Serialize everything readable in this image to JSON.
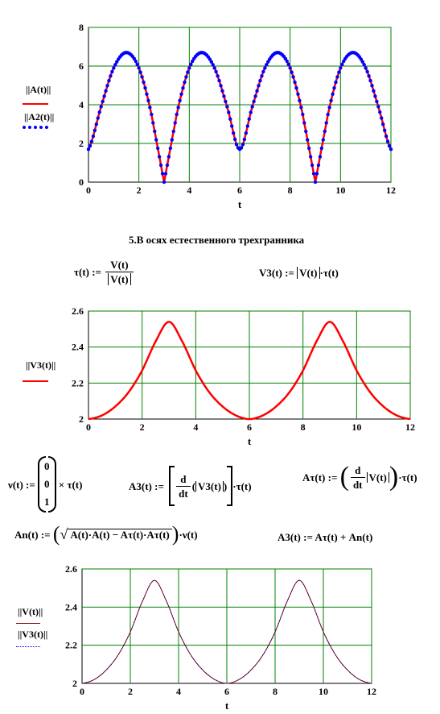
{
  "chart_data": [
    {
      "type": "line",
      "xlabel": "t",
      "xlim": [
        0,
        12
      ],
      "ylim": [
        0,
        8
      ],
      "xticks": [
        "0",
        "2",
        "4",
        "6",
        "8",
        "10",
        "12"
      ],
      "yticks": [
        "0",
        "2",
        "4",
        "6",
        "8"
      ],
      "grid": true,
      "frame_color": "#008000",
      "series": [
        {
          "name": "|A(t)|",
          "color": "#ff0000",
          "style": "solid",
          "x": [
            0,
            0.5,
            1,
            1.5,
            2,
            2.5,
            3,
            3.5,
            4,
            4.5,
            5,
            5.5,
            6,
            6.5,
            7,
            7.5,
            8,
            8.5,
            9,
            9.5,
            10,
            10.5,
            11,
            11.5,
            12
          ],
          "y": [
            1.7,
            3.9,
            5.9,
            6.7,
            5.9,
            3.5,
            0,
            3.5,
            5.9,
            6.7,
            5.9,
            3.9,
            1.7,
            3.9,
            5.9,
            6.7,
            5.9,
            3.5,
            0,
            3.5,
            5.9,
            6.7,
            5.9,
            3.9,
            1.7
          ]
        },
        {
          "name": "|A2(t)|",
          "color": "#0000ff",
          "style": "dots",
          "x": [
            0,
            0.5,
            1,
            1.5,
            2,
            2.5,
            3,
            3.5,
            4,
            4.5,
            5,
            5.5,
            6,
            6.5,
            7,
            7.5,
            8,
            8.5,
            9,
            9.5,
            10,
            10.5,
            11,
            11.5,
            12
          ],
          "y": [
            1.7,
            3.9,
            5.9,
            6.7,
            5.9,
            3.5,
            0,
            3.5,
            5.9,
            6.7,
            5.9,
            3.9,
            1.7,
            3.9,
            5.9,
            6.7,
            5.9,
            3.5,
            0,
            3.5,
            5.9,
            6.7,
            5.9,
            3.9,
            1.7
          ]
        }
      ]
    },
    {
      "type": "line",
      "xlabel": "t",
      "xlim": [
        0,
        12
      ],
      "ylim": [
        2,
        2.6
      ],
      "xticks": [
        "0",
        "2",
        "4",
        "6",
        "8",
        "10",
        "12"
      ],
      "yticks": [
        "2",
        "2.2",
        "2.4",
        "2.6"
      ],
      "grid": true,
      "frame_color": "#008000",
      "series": [
        {
          "name": "|V3(t)|",
          "color": "#ff0000",
          "style": "solid",
          "x": [
            0,
            0.5,
            1,
            1.5,
            2,
            2.5,
            3,
            3.5,
            4,
            4.5,
            5,
            5.5,
            6,
            6.5,
            7,
            7.5,
            8,
            8.5,
            9,
            9.5,
            10,
            10.5,
            11,
            11.5,
            12
          ],
          "y": [
            2.0,
            2.02,
            2.07,
            2.15,
            2.27,
            2.43,
            2.54,
            2.43,
            2.27,
            2.15,
            2.07,
            2.02,
            2.0,
            2.02,
            2.07,
            2.15,
            2.27,
            2.43,
            2.54,
            2.43,
            2.27,
            2.15,
            2.07,
            2.02,
            2.0
          ]
        }
      ]
    },
    {
      "type": "line",
      "xlabel": "t",
      "xlim": [
        0,
        12
      ],
      "ylim": [
        2,
        2.6
      ],
      "xticks": [
        "0",
        "2",
        "4",
        "6",
        "8",
        "10",
        "12"
      ],
      "yticks": [
        "2",
        "2.2",
        "2.4",
        "2.6"
      ],
      "grid": true,
      "frame_color": "#008000",
      "series": [
        {
          "name": "|V(t)|",
          "color": "#800000",
          "style": "solid",
          "x": [
            0,
            0.5,
            1,
            1.5,
            2,
            2.5,
            3,
            3.5,
            4,
            4.5,
            5,
            5.5,
            6,
            6.5,
            7,
            7.5,
            8,
            8.5,
            9,
            9.5,
            10,
            10.5,
            11,
            11.5,
            12
          ],
          "y": [
            2.0,
            2.02,
            2.07,
            2.15,
            2.27,
            2.43,
            2.54,
            2.43,
            2.27,
            2.15,
            2.07,
            2.02,
            2.0,
            2.02,
            2.07,
            2.15,
            2.27,
            2.43,
            2.54,
            2.43,
            2.27,
            2.15,
            2.07,
            2.02,
            2.0
          ]
        },
        {
          "name": "|V3(t)|",
          "color": "#0000ff",
          "style": "dots",
          "x": [
            0,
            0.5,
            1,
            1.5,
            2,
            2.5,
            3,
            3.5,
            4,
            4.5,
            5,
            5.5,
            6,
            6.5,
            7,
            7.5,
            8,
            8.5,
            9,
            9.5,
            10,
            10.5,
            11,
            11.5,
            12
          ],
          "y": [
            2.0,
            2.02,
            2.07,
            2.15,
            2.27,
            2.43,
            2.54,
            2.43,
            2.27,
            2.15,
            2.07,
            2.02,
            2.0,
            2.02,
            2.07,
            2.15,
            2.27,
            2.43,
            2.54,
            2.43,
            2.27,
            2.15,
            2.07,
            2.02,
            2.0
          ]
        }
      ]
    }
  ],
  "section_heading": "5.В осях естественного трехгранника",
  "formulas": {
    "tau_lhs": "τ(t) :=",
    "tau_num": "V(t)",
    "tau_den": "V(t)",
    "v3_lhs": "V3(t) :=",
    "v3_abs": "V(t)",
    "v3_rhs": "·τ(t)",
    "nu_lhs": "ν(t) :=",
    "nu_vec": [
      "0",
      "0",
      "1"
    ],
    "nu_rhs": "× τ(t)",
    "a3_lhs": "A3(t) :=",
    "a3_d": "d",
    "a3_dt": "dt",
    "a3_abs": "V3(t)",
    "a3_rhs": "·τ(t)",
    "atau_lhs": "Aτ(t) :=",
    "atau_d": "d",
    "atau_dt": "dt",
    "atau_abs": "V(t)",
    "atau_rhs": "·τ(t)",
    "an_lhs": "An(t) :=",
    "an_sqrt": "A(t)·A(t) − Aτ(t)·Aτ(t)",
    "an_rhs": "·ν(t)",
    "a3sum": "A3(t) := Aτ(t) + An(t)"
  }
}
